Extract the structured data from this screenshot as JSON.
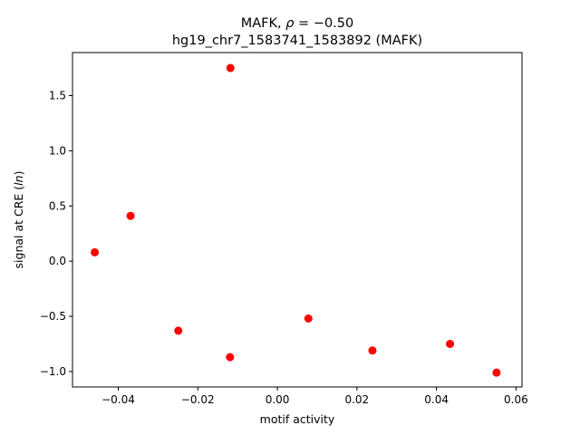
{
  "chart_data": {
    "type": "scatter",
    "title_line1_prefix": "MAFK, ",
    "title_line1_rho": "ρ",
    "title_line1_suffix": " = −0.50",
    "title_line2": "hg19_chr7_1583741_1583892 (MAFK)",
    "xlabel": "motif activity",
    "ylabel_prefix": "signal at CRE (",
    "ylabel_italic": "ln",
    "ylabel_suffix": ")",
    "xlim": [
      -0.0515,
      0.0615
    ],
    "ylim": [
      -1.14,
      1.89
    ],
    "xticks": [
      -0.04,
      -0.02,
      0.0,
      0.02,
      0.04,
      0.06
    ],
    "xtick_labels": [
      "−0.04",
      "−0.02",
      "0.00",
      "0.02",
      "0.04",
      "0.06"
    ],
    "yticks": [
      -1.0,
      -0.5,
      0.0,
      0.5,
      1.0,
      1.5
    ],
    "ytick_labels": [
      "−1.0",
      "−0.5",
      "0.0",
      "0.5",
      "1.0",
      "1.5"
    ],
    "marker_color": "#ff0000",
    "points": [
      {
        "x": -0.0459,
        "y": 0.08
      },
      {
        "x": -0.0369,
        "y": 0.41
      },
      {
        "x": -0.0249,
        "y": -0.63
      },
      {
        "x": -0.0118,
        "y": 1.75
      },
      {
        "x": -0.0119,
        "y": -0.87
      },
      {
        "x": 0.0078,
        "y": -0.52
      },
      {
        "x": 0.0239,
        "y": -0.81
      },
      {
        "x": 0.0434,
        "y": -0.75
      },
      {
        "x": 0.0551,
        "y": -1.01
      }
    ]
  }
}
